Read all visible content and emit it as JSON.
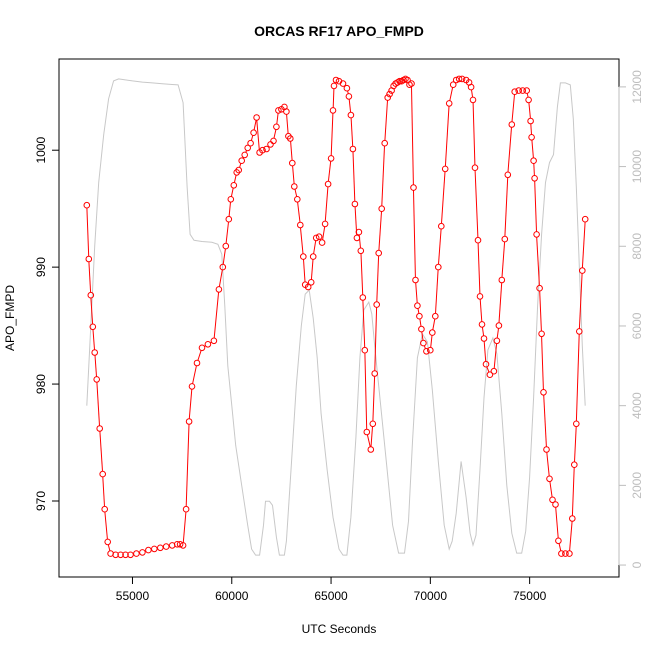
{
  "chart_data": {
    "type": "line",
    "title": "ORCAS RF17 APO_FMPD",
    "xlabel": "UTC Seconds",
    "ylabel": "APO_FMPD",
    "xlim": [
      51300,
      79500
    ],
    "ylim": [
      963.5,
      1007.8
    ],
    "y2lim": [
      -300,
      12700
    ],
    "x_ticks": [
      55000,
      60000,
      65000,
      70000,
      75000
    ],
    "y_ticks": [
      970,
      980,
      990,
      1000
    ],
    "y2_ticks": [
      0,
      2000,
      4000,
      6000,
      8000,
      10000,
      12000
    ],
    "grid": false,
    "colors": {
      "apo": "#ff0000",
      "altitude": "#c8c8c8",
      "right_axis": "#bdbdbd"
    },
    "series": [
      {
        "axis": "left",
        "points": [
          [
            52700,
            995.3
          ],
          [
            52800,
            990.7
          ],
          [
            52900,
            987.6
          ],
          [
            53000,
            984.9
          ],
          [
            53100,
            982.7
          ],
          [
            53200,
            980.4
          ],
          [
            53350,
            976.2
          ],
          [
            53500,
            972.3
          ],
          [
            53600,
            969.3
          ],
          [
            53750,
            966.5
          ],
          [
            53900,
            965.5
          ],
          [
            54150,
            965.4
          ],
          [
            54400,
            965.4
          ],
          [
            54650,
            965.4
          ],
          [
            54900,
            965.4
          ],
          [
            55200,
            965.5
          ],
          [
            55500,
            965.6
          ],
          [
            55800,
            965.8
          ],
          [
            56100,
            965.9
          ],
          [
            56400,
            966.0
          ],
          [
            56700,
            966.1
          ],
          [
            57000,
            966.2
          ],
          [
            57250,
            966.3
          ],
          [
            57400,
            966.3
          ],
          [
            57550,
            966.2
          ],
          [
            57700,
            969.3
          ],
          [
            57850,
            976.8
          ],
          [
            58000,
            979.8
          ],
          [
            58250,
            981.8
          ],
          [
            58500,
            983.1
          ],
          [
            58800,
            983.4
          ],
          [
            59100,
            983.7
          ],
          [
            59350,
            988.1
          ],
          [
            59550,
            990.0
          ],
          [
            59700,
            991.8
          ],
          [
            59850,
            994.1
          ],
          [
            59950,
            995.8
          ],
          [
            60100,
            997.0
          ],
          [
            60250,
            998.1
          ],
          [
            60350,
            998.3
          ],
          [
            60500,
            999.1
          ],
          [
            60650,
            999.6
          ],
          [
            60800,
            1000.2
          ],
          [
            60950,
            1000.6
          ],
          [
            61100,
            1001.5
          ],
          [
            61250,
            1002.8
          ],
          [
            61400,
            999.8
          ],
          [
            61550,
            1000.0
          ],
          [
            61750,
            1000.1
          ],
          [
            61950,
            1000.5
          ],
          [
            62100,
            1000.8
          ],
          [
            62250,
            1002.0
          ],
          [
            62350,
            1003.4
          ],
          [
            62500,
            1003.5
          ],
          [
            62650,
            1003.7
          ],
          [
            62750,
            1003.3
          ],
          [
            62850,
            1001.2
          ],
          [
            62950,
            1001.0
          ],
          [
            63050,
            998.9
          ],
          [
            63150,
            996.9
          ],
          [
            63300,
            995.8
          ],
          [
            63450,
            993.6
          ],
          [
            63600,
            990.9
          ],
          [
            63700,
            988.5
          ],
          [
            63850,
            988.3
          ],
          [
            64000,
            988.7
          ],
          [
            64100,
            990.9
          ],
          [
            64250,
            992.5
          ],
          [
            64400,
            992.6
          ],
          [
            64550,
            992.1
          ],
          [
            64700,
            993.7
          ],
          [
            64850,
            997.1
          ],
          [
            65000,
            999.3
          ],
          [
            65100,
            1003.4
          ],
          [
            65150,
            1005.5
          ],
          [
            65250,
            1006.0
          ],
          [
            65400,
            1005.9
          ],
          [
            65600,
            1005.7
          ],
          [
            65800,
            1005.3
          ],
          [
            65900,
            1004.6
          ],
          [
            66000,
            1003.0
          ],
          [
            66100,
            1000.1
          ],
          [
            66200,
            995.4
          ],
          [
            66300,
            992.5
          ],
          [
            66400,
            993.0
          ],
          [
            66500,
            991.4
          ],
          [
            66600,
            987.4
          ],
          [
            66700,
            982.9
          ],
          [
            66800,
            975.9
          ],
          [
            67000,
            974.4
          ],
          [
            67100,
            976.6
          ],
          [
            67200,
            980.9
          ],
          [
            67300,
            986.8
          ],
          [
            67400,
            991.2
          ],
          [
            67550,
            995.0
          ],
          [
            67700,
            1000.6
          ],
          [
            67850,
            1004.5
          ],
          [
            67950,
            1004.8
          ],
          [
            68050,
            1005.1
          ],
          [
            68150,
            1005.5
          ],
          [
            68250,
            1005.7
          ],
          [
            68350,
            1005.8
          ],
          [
            68450,
            1005.9
          ],
          [
            68550,
            1005.9
          ],
          [
            68650,
            1006.0
          ],
          [
            68750,
            1006.1
          ],
          [
            68850,
            1006.0
          ],
          [
            68950,
            1005.6
          ],
          [
            69050,
            1005.7
          ],
          [
            69150,
            996.8
          ],
          [
            69250,
            988.9
          ],
          [
            69350,
            986.7
          ],
          [
            69450,
            985.8
          ],
          [
            69550,
            984.7
          ],
          [
            69650,
            983.5
          ],
          [
            69800,
            982.8
          ],
          [
            70000,
            982.9
          ],
          [
            70100,
            984.4
          ],
          [
            70250,
            985.8
          ],
          [
            70400,
            990.0
          ],
          [
            70550,
            993.5
          ],
          [
            70750,
            998.4
          ],
          [
            70950,
            1004.0
          ],
          [
            71150,
            1005.6
          ],
          [
            71300,
            1006.0
          ],
          [
            71450,
            1006.1
          ],
          [
            71600,
            1006.1
          ],
          [
            71800,
            1006.0
          ],
          [
            71950,
            1005.8
          ],
          [
            72050,
            1005.4
          ],
          [
            72150,
            1004.3
          ],
          [
            72250,
            998.5
          ],
          [
            72400,
            992.3
          ],
          [
            72500,
            987.5
          ],
          [
            72600,
            985.1
          ],
          [
            72700,
            983.9
          ],
          [
            72800,
            981.7
          ],
          [
            73000,
            980.8
          ],
          [
            73200,
            981.1
          ],
          [
            73350,
            983.7
          ],
          [
            73450,
            985.0
          ],
          [
            73600,
            988.9
          ],
          [
            73750,
            992.4
          ],
          [
            73900,
            997.9
          ],
          [
            74100,
            1002.2
          ],
          [
            74250,
            1005.0
          ],
          [
            74450,
            1005.1
          ],
          [
            74650,
            1005.1
          ],
          [
            74850,
            1005.1
          ],
          [
            74950,
            1004.3
          ],
          [
            75050,
            1002.5
          ],
          [
            75100,
            1001.1
          ],
          [
            75200,
            999.1
          ],
          [
            75250,
            997.6
          ],
          [
            75350,
            992.8
          ],
          [
            75500,
            988.2
          ],
          [
            75600,
            984.3
          ],
          [
            75700,
            979.3
          ],
          [
            75850,
            974.4
          ],
          [
            76000,
            971.9
          ],
          [
            76150,
            970.1
          ],
          [
            76300,
            969.7
          ],
          [
            76450,
            966.6
          ],
          [
            76600,
            965.5
          ],
          [
            76800,
            965.5
          ],
          [
            77000,
            965.5
          ],
          [
            77150,
            968.5
          ],
          [
            77250,
            973.1
          ],
          [
            77350,
            976.6
          ],
          [
            77500,
            984.5
          ],
          [
            77650,
            989.7
          ],
          [
            77800,
            994.1
          ]
        ]
      },
      {
        "axis": "right",
        "points": [
          [
            52700,
            4000
          ],
          [
            52900,
            6000
          ],
          [
            53100,
            8000
          ],
          [
            53300,
            9600
          ],
          [
            53550,
            10800
          ],
          [
            53800,
            11700
          ],
          [
            54050,
            12150
          ],
          [
            54300,
            12200
          ],
          [
            54600,
            12180
          ],
          [
            55000,
            12150
          ],
          [
            55500,
            12120
          ],
          [
            56000,
            12100
          ],
          [
            56500,
            12080
          ],
          [
            57000,
            12060
          ],
          [
            57300,
            12050
          ],
          [
            57550,
            11600
          ],
          [
            57750,
            9500
          ],
          [
            57900,
            8300
          ],
          [
            58100,
            8150
          ],
          [
            58500,
            8120
          ],
          [
            59000,
            8100
          ],
          [
            59300,
            8050
          ],
          [
            59500,
            7800
          ],
          [
            59650,
            6500
          ],
          [
            59800,
            5000
          ],
          [
            60000,
            4000
          ],
          [
            60200,
            3000
          ],
          [
            60500,
            2000
          ],
          [
            60800,
            1000
          ],
          [
            61000,
            400
          ],
          [
            61200,
            250
          ],
          [
            61400,
            250
          ],
          [
            61600,
            1000
          ],
          [
            61700,
            1600
          ],
          [
            61900,
            1600
          ],
          [
            62050,
            1500
          ],
          [
            62250,
            700
          ],
          [
            62400,
            250
          ],
          [
            62650,
            250
          ],
          [
            62750,
            600
          ],
          [
            63000,
            2500
          ],
          [
            63250,
            4500
          ],
          [
            63500,
            6000
          ],
          [
            63700,
            6800
          ],
          [
            63900,
            6900
          ],
          [
            64100,
            6200
          ],
          [
            64300,
            5200
          ],
          [
            64500,
            3800
          ],
          [
            64800,
            2400
          ],
          [
            65100,
            1200
          ],
          [
            65400,
            400
          ],
          [
            65600,
            250
          ],
          [
            65800,
            250
          ],
          [
            66000,
            1200
          ],
          [
            66250,
            3200
          ],
          [
            66450,
            5200
          ],
          [
            66650,
            6400
          ],
          [
            66900,
            6600
          ],
          [
            67050,
            6300
          ],
          [
            67200,
            5500
          ],
          [
            67500,
            4000
          ],
          [
            67800,
            2500
          ],
          [
            68100,
            1000
          ],
          [
            68400,
            300
          ],
          [
            68700,
            300
          ],
          [
            68900,
            1100
          ],
          [
            69100,
            3100
          ],
          [
            69350,
            5200
          ],
          [
            69600,
            5800
          ],
          [
            69850,
            5600
          ],
          [
            70100,
            4400
          ],
          [
            70400,
            2600
          ],
          [
            70700,
            1000
          ],
          [
            70950,
            400
          ],
          [
            71100,
            600
          ],
          [
            71300,
            1300
          ],
          [
            71550,
            2600
          ],
          [
            71800,
            1700
          ],
          [
            72000,
            800
          ],
          [
            72150,
            500
          ],
          [
            72300,
            750
          ],
          [
            72500,
            2400
          ],
          [
            72700,
            4200
          ],
          [
            72900,
            5400
          ],
          [
            73150,
            5700
          ],
          [
            73350,
            5300
          ],
          [
            73600,
            3800
          ],
          [
            73850,
            2000
          ],
          [
            74100,
            800
          ],
          [
            74350,
            300
          ],
          [
            74600,
            300
          ],
          [
            74800,
            850
          ],
          [
            75000,
            2200
          ],
          [
            75200,
            4200
          ],
          [
            75400,
            6500
          ],
          [
            75600,
            8300
          ],
          [
            75800,
            9600
          ],
          [
            76000,
            10100
          ],
          [
            76200,
            10300
          ],
          [
            76400,
            11500
          ],
          [
            76550,
            12100
          ],
          [
            76800,
            12100
          ],
          [
            77050,
            12050
          ],
          [
            77200,
            11200
          ],
          [
            77350,
            9500
          ],
          [
            77500,
            7500
          ],
          [
            77650,
            5500
          ],
          [
            77800,
            4000
          ]
        ]
      }
    ]
  }
}
